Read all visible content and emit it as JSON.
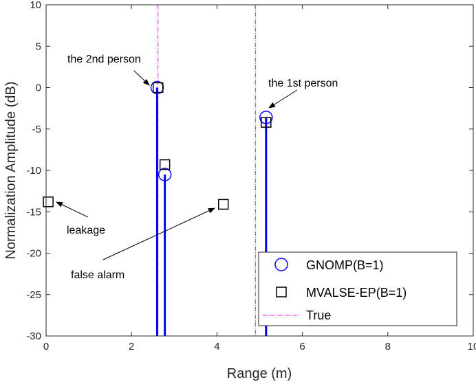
{
  "chart_data": {
    "type": "stem",
    "xlabel": "Range (m)",
    "ylabel": "Normalization Amplitude (dB)",
    "xlim": [
      0,
      10
    ],
    "ylim": [
      -30,
      10
    ],
    "xticks": [
      0,
      2,
      4,
      6,
      8,
      10
    ],
    "yticks": [
      10,
      5,
      0,
      -5,
      -10,
      -15,
      -20,
      -25,
      -30
    ],
    "xtick_labels": [
      "0",
      "2",
      "4",
      "6",
      "8",
      "10"
    ],
    "ytick_labels": [
      "10",
      "5",
      "0",
      "-5",
      "-10",
      "-15",
      "-20",
      "-25",
      "-30"
    ],
    "grid": false,
    "series": [
      {
        "name": "GNOMP(B=1)",
        "marker": "circle",
        "color": "#0000ff",
        "stems": true,
        "x": [
          2.6,
          2.78,
          5.15
        ],
        "y": [
          0,
          -10.5,
          -3.6
        ]
      },
      {
        "name": "MVALSE-EP(B=1)",
        "marker": "square",
        "color": "#000000",
        "stems": false,
        "x": [
          2.62,
          2.78,
          5.15,
          0.05,
          4.15
        ],
        "y": [
          0,
          -9.3,
          -4.2,
          -13.8,
          -14.1
        ]
      },
      {
        "name": "True",
        "style": "dashdot",
        "color": "#ff00ff",
        "x": [
          2.62,
          4.9
        ]
      }
    ],
    "annotations": [
      {
        "text": "the 2nd person",
        "target": [
          2.6,
          0
        ]
      },
      {
        "text": "the 1st person",
        "target": [
          5.15,
          -3.6
        ]
      },
      {
        "text": "leakage",
        "target": [
          0.05,
          -13.8
        ]
      },
      {
        "text": "false alarm",
        "target": [
          4.15,
          -14.1
        ]
      }
    ],
    "legend_position": "bottom-right"
  }
}
